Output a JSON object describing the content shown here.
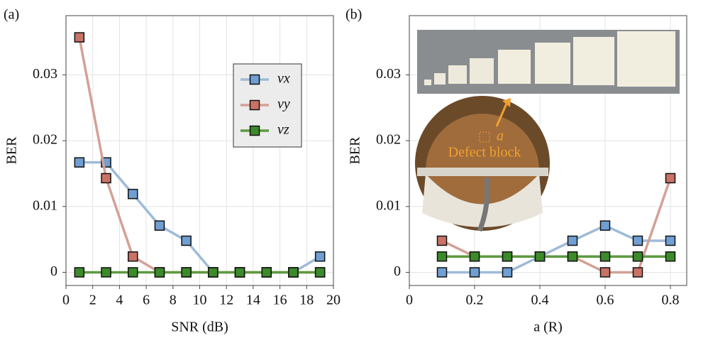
{
  "chart_data": [
    {
      "type": "line",
      "panel": "(a)",
      "xlabel": "SNR (dB)",
      "ylabel": "BER",
      "x": [
        1,
        3,
        5,
        7,
        9,
        11,
        13,
        15,
        17,
        19
      ],
      "xlim": [
        0,
        20
      ],
      "xticks": [
        0,
        2,
        4,
        6,
        8,
        10,
        12,
        14,
        16,
        18,
        20
      ],
      "ylim": [
        -0.002,
        0.039
      ],
      "yticks": [
        0,
        0.01,
        0.02,
        0.03
      ],
      "grid": true,
      "legend": "upper right",
      "series": [
        {
          "name": "vx",
          "color": "#6f9fd3",
          "line_color": "#9ebbd8",
          "values": [
            0.0167,
            0.0167,
            0.0119,
            0.0071,
            0.0048,
            0,
            0,
            0,
            0,
            0.0024
          ]
        },
        {
          "name": "vy",
          "color": "#c97266",
          "line_color": "#d4a096",
          "values": [
            0.0357,
            0.0143,
            0.0024,
            0,
            0,
            0,
            0,
            0,
            0,
            0
          ]
        },
        {
          "name": "vz",
          "color": "#3c8a2a",
          "line_color": "#5e9a40",
          "values": [
            0,
            0,
            0,
            0,
            0,
            0,
            0,
            0,
            0,
            0
          ]
        }
      ]
    },
    {
      "type": "line",
      "panel": "(b)",
      "xlabel": "a (R)",
      "ylabel": "BER",
      "x": [
        0.1,
        0.2,
        0.3,
        0.4,
        0.5,
        0.6,
        0.7,
        0.8
      ],
      "xlim": [
        0,
        0.85
      ],
      "xticks": [
        0,
        0.2,
        0.4,
        0.6,
        0.8
      ],
      "ylim": [
        -0.002,
        0.039
      ],
      "yticks": [
        0,
        0.01,
        0.02,
        0.03
      ],
      "grid": true,
      "annotations": [
        "a",
        "Defect block"
      ],
      "series": [
        {
          "name": "vx",
          "color": "#6f9fd3",
          "line_color": "#9ebbd8",
          "values": [
            0,
            0,
            0,
            0.0024,
            0.0048,
            0.0071,
            0.0048,
            0.0048
          ]
        },
        {
          "name": "vy",
          "color": "#c97266",
          "line_color": "#d4a096",
          "values": [
            0.0048,
            0.0024,
            0.0024,
            0.0024,
            0.0024,
            0,
            0,
            0.0143
          ]
        },
        {
          "name": "vz",
          "color": "#3c8a2a",
          "line_color": "#5e9a40",
          "values": [
            0.0024,
            0.0024,
            0.0024,
            0.0024,
            0.0024,
            0.0024,
            0.0024,
            0.0024
          ]
        }
      ]
    }
  ]
}
